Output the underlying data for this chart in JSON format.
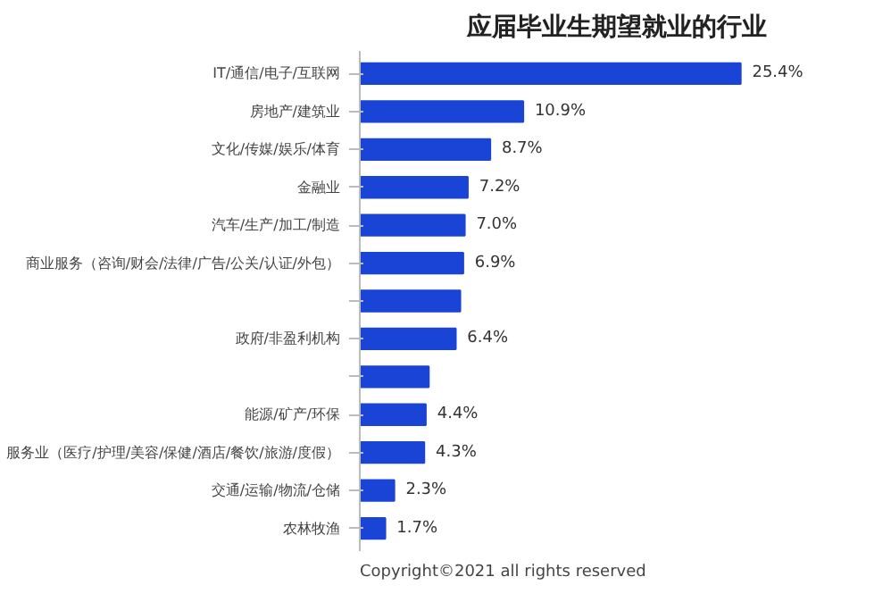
{
  "chart_data": {
    "type": "bar",
    "orientation": "horizontal",
    "title": "应届毕业生期望就业的行业",
    "categories": [
      "IT/通信/电子/互联网",
      "房地产/建筑业",
      "文化/传媒/娱乐/体育",
      "金融业",
      "汽车/生产/加工/制造",
      "商业服务（咨询/财会/法律/广告/公关/认证/外包）",
      null,
      "政府/非盈利机构",
      null,
      "能源/矿产/环保",
      "服务业（医疗/护理/美容/保健/酒店/餐饮/旅游/度假）",
      "交通/运输/物流/仓储",
      "农林牧渔"
    ],
    "values": [
      25.4,
      10.9,
      8.7,
      7.2,
      7.0,
      6.9,
      6.7,
      6.4,
      4.6,
      4.4,
      4.3,
      2.3,
      1.7
    ],
    "value_labels": [
      "25.4%",
      "10.9%",
      "8.7%",
      "7.2%",
      "7.0%",
      "6.9%",
      null,
      "6.4%",
      null,
      "4.4%",
      "4.3%",
      "2.3%",
      "1.7%"
    ],
    "color": "#1a44d6",
    "annotations": [
      "Copyright©2021 all rights reserved"
    ]
  }
}
